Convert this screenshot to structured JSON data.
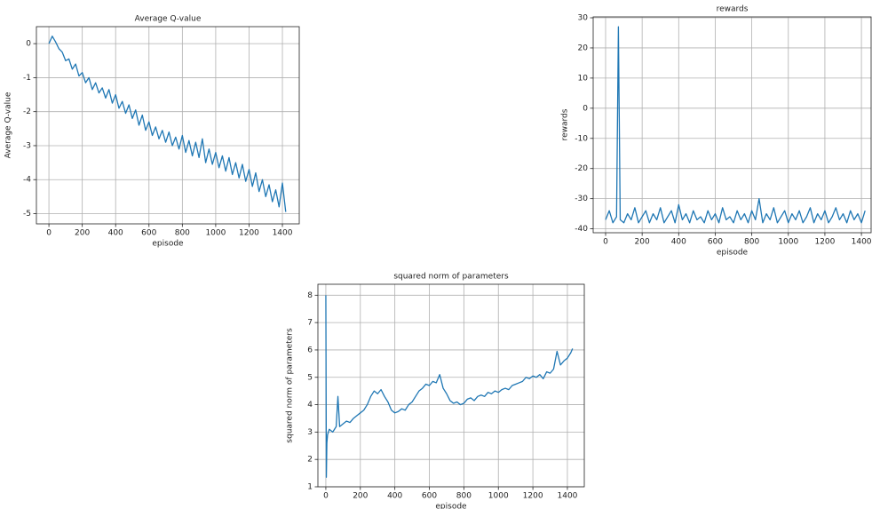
{
  "chart_data": [
    {
      "type": "line",
      "title": "Average Q-value",
      "x_label": "episode",
      "y_label": "Average Q-value",
      "grid": true,
      "x": [
        0,
        20,
        40,
        60,
        80,
        100,
        120,
        140,
        160,
        180,
        200,
        220,
        240,
        260,
        280,
        300,
        320,
        340,
        360,
        380,
        400,
        420,
        440,
        460,
        480,
        500,
        520,
        540,
        560,
        580,
        600,
        620,
        640,
        660,
        680,
        700,
        720,
        740,
        760,
        780,
        800,
        820,
        840,
        860,
        880,
        900,
        920,
        940,
        960,
        980,
        1000,
        1020,
        1040,
        1060,
        1080,
        1100,
        1120,
        1140,
        1160,
        1180,
        1200,
        1220,
        1240,
        1260,
        1280,
        1300,
        1320,
        1340,
        1360,
        1380,
        1400,
        1420
      ],
      "series": [
        {
          "name": "Average Q-value",
          "color": "#1f77b4",
          "values": [
            0.0,
            0.22,
            0.05,
            -0.15,
            -0.25,
            -0.5,
            -0.45,
            -0.75,
            -0.6,
            -0.95,
            -0.85,
            -1.15,
            -1.0,
            -1.35,
            -1.15,
            -1.45,
            -1.3,
            -1.6,
            -1.35,
            -1.75,
            -1.5,
            -1.9,
            -1.7,
            -2.05,
            -1.8,
            -2.2,
            -1.95,
            -2.4,
            -2.1,
            -2.55,
            -2.3,
            -2.7,
            -2.45,
            -2.8,
            -2.55,
            -2.9,
            -2.6,
            -3.0,
            -2.75,
            -3.1,
            -2.7,
            -3.2,
            -2.85,
            -3.3,
            -2.9,
            -3.35,
            -2.8,
            -3.5,
            -3.1,
            -3.55,
            -3.2,
            -3.65,
            -3.3,
            -3.75,
            -3.35,
            -3.85,
            -3.5,
            -3.95,
            -3.55,
            -4.05,
            -3.7,
            -4.2,
            -3.8,
            -4.35,
            -4.0,
            -4.5,
            -4.15,
            -4.65,
            -4.3,
            -4.8,
            -4.1,
            -4.95
          ]
        }
      ],
      "xlim": [
        -75,
        1501
      ],
      "ylim": [
        -5.3,
        0.5
      ],
      "xticks": [
        0,
        200,
        400,
        600,
        800,
        1000,
        1200,
        1400
      ],
      "yticks": [
        0,
        -1,
        -2,
        -3,
        -4,
        -5
      ]
    },
    {
      "type": "line",
      "title": "rewards",
      "x_label": "episode",
      "y_label": "rewards",
      "grid": true,
      "x": [
        0,
        20,
        40,
        60,
        70,
        80,
        100,
        120,
        140,
        160,
        180,
        200,
        220,
        240,
        260,
        280,
        300,
        320,
        340,
        360,
        380,
        400,
        420,
        440,
        460,
        480,
        500,
        520,
        540,
        560,
        580,
        600,
        620,
        640,
        660,
        680,
        700,
        720,
        740,
        760,
        780,
        800,
        820,
        840,
        860,
        880,
        900,
        920,
        940,
        960,
        980,
        1000,
        1020,
        1040,
        1060,
        1080,
        1100,
        1120,
        1140,
        1160,
        1180,
        1200,
        1220,
        1240,
        1260,
        1280,
        1300,
        1320,
        1340,
        1360,
        1380,
        1400,
        1420
      ],
      "series": [
        {
          "name": "rewards",
          "color": "#1f77b4",
          "values": [
            -37,
            -34,
            -38,
            -36,
            27,
            -37,
            -38,
            -35,
            -37,
            -33,
            -38,
            -36,
            -34,
            -38,
            -35,
            -37,
            -33,
            -38,
            -36,
            -34,
            -38,
            -32,
            -37,
            -35,
            -38,
            -34,
            -37,
            -36,
            -38,
            -34,
            -37,
            -35,
            -38,
            -33,
            -37,
            -36,
            -38,
            -34,
            -37,
            -35,
            -38,
            -34,
            -37,
            -30,
            -38,
            -35,
            -37,
            -33,
            -38,
            -36,
            -34,
            -38,
            -35,
            -37,
            -34,
            -38,
            -36,
            -33,
            -38,
            -35,
            -37,
            -34,
            -38,
            -36,
            -33,
            -37,
            -35,
            -38,
            -34,
            -37,
            -35,
            -38,
            -34
          ]
        }
      ],
      "xlim": [
        -68,
        1453
      ],
      "ylim": [
        -41.3,
        30.3
      ],
      "xticks": [
        0,
        200,
        400,
        600,
        800,
        1000,
        1200,
        1400
      ],
      "yticks": [
        30,
        20,
        10,
        0,
        -10,
        -20,
        -30,
        -40
      ]
    },
    {
      "type": "line",
      "title": "squared norm of parameters",
      "x_label": "episode",
      "y_label": "squared norm of parameters",
      "grid": true,
      "x": [
        0,
        3,
        6,
        10,
        20,
        40,
        60,
        70,
        80,
        100,
        120,
        140,
        160,
        180,
        200,
        220,
        240,
        260,
        280,
        300,
        320,
        340,
        360,
        380,
        400,
        420,
        440,
        460,
        480,
        500,
        520,
        540,
        560,
        580,
        600,
        620,
        640,
        660,
        680,
        700,
        720,
        740,
        760,
        780,
        800,
        820,
        840,
        860,
        880,
        900,
        920,
        940,
        960,
        980,
        1000,
        1020,
        1040,
        1060,
        1080,
        1100,
        1120,
        1140,
        1160,
        1180,
        1200,
        1220,
        1240,
        1260,
        1280,
        1300,
        1320,
        1340,
        1360,
        1380,
        1400,
        1420,
        1430
      ],
      "series": [
        {
          "name": "squared norm of parameters",
          "color": "#1f77b4",
          "values": [
            8.0,
            1.35,
            2.6,
            2.9,
            3.1,
            3.0,
            3.2,
            4.3,
            3.2,
            3.3,
            3.4,
            3.35,
            3.5,
            3.6,
            3.7,
            3.8,
            4.0,
            4.3,
            4.5,
            4.4,
            4.55,
            4.3,
            4.1,
            3.8,
            3.7,
            3.75,
            3.85,
            3.8,
            4.0,
            4.1,
            4.3,
            4.5,
            4.6,
            4.75,
            4.7,
            4.85,
            4.8,
            5.1,
            4.6,
            4.4,
            4.15,
            4.05,
            4.1,
            4.0,
            4.05,
            4.2,
            4.25,
            4.15,
            4.3,
            4.35,
            4.3,
            4.45,
            4.4,
            4.5,
            4.45,
            4.55,
            4.6,
            4.55,
            4.7,
            4.75,
            4.8,
            4.85,
            5.0,
            4.95,
            5.05,
            5.0,
            5.1,
            4.95,
            5.2,
            5.15,
            5.3,
            5.95,
            5.45,
            5.6,
            5.7,
            5.9,
            6.05
          ]
        }
      ],
      "xlim": [
        -46,
        1498
      ],
      "ylim": [
        1,
        8.4
      ],
      "xticks": [
        0,
        200,
        400,
        600,
        800,
        1000,
        1200,
        1400
      ],
      "yticks": [
        1,
        2,
        3,
        4,
        5,
        6,
        7,
        8
      ]
    }
  ]
}
